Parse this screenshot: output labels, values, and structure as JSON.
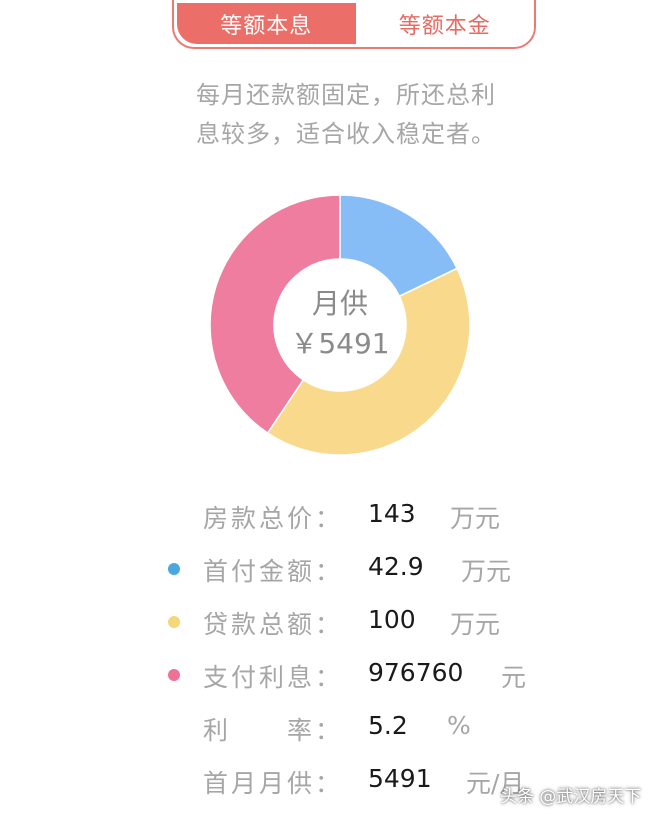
{
  "tabs": [
    {
      "label": "等额本息",
      "active": true
    },
    {
      "label": "等额本金",
      "active": false
    }
  ],
  "description": [
    "每月还款额固定，所还总利",
    "息较多，适合收入稳定者。"
  ],
  "donut": {
    "center_label": "月供",
    "center_value": "￥5491",
    "segments": [
      {
        "name": "首付金额",
        "value": 42.9,
        "color": "#86bdf7"
      },
      {
        "name": "贷款总额",
        "value": 100,
        "color": "#f9da8c"
      },
      {
        "name": "支付利息",
        "value": 97.676,
        "color": "#ee7da0"
      }
    ]
  },
  "details": [
    {
      "label": "房款总价：",
      "value": "143",
      "unit": "万元",
      "dot": null
    },
    {
      "label": "首付金额：",
      "value": "42.9",
      "unit": "万元",
      "dot": "#4aa7e0"
    },
    {
      "label": "贷款总额：",
      "value": "100",
      "unit": "万元",
      "dot": "#f7d57a"
    },
    {
      "label": "支付利息：",
      "value": "976760",
      "unit": "元",
      "dot": "#ee7198"
    },
    {
      "label": "利　　率：",
      "value": "5.2",
      "unit": "%",
      "dot": null
    },
    {
      "label": "首月月供：",
      "value": "5491",
      "unit": "元/月",
      "dot": null
    }
  ],
  "watermark": "头条 @武汉房天下"
}
